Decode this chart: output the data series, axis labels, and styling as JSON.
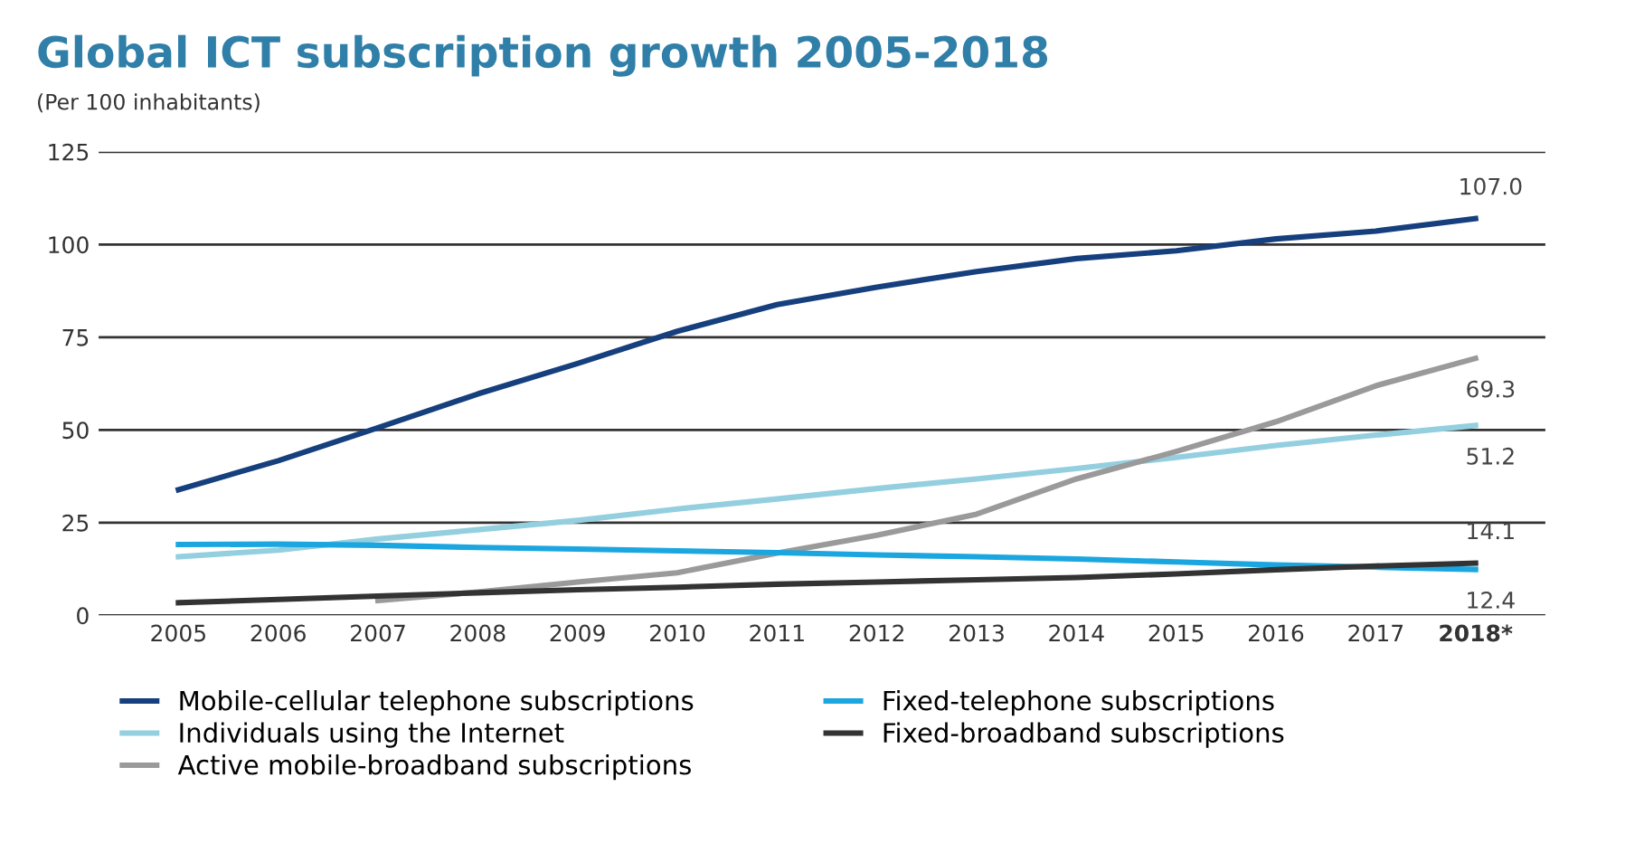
{
  "chart_data": {
    "type": "line",
    "title": "Global ICT subscription growth 2005-2018",
    "ylabel": "(Per 100 inhabitants)",
    "categories": [
      "2005",
      "2006",
      "2007",
      "2008",
      "2009",
      "2010",
      "2011",
      "2012",
      "2013",
      "2014",
      "2015",
      "2016",
      "2017",
      "2018*"
    ],
    "series": [
      {
        "name": "Mobile-cellular telephone subscriptions",
        "color": "#163f7d",
        "values": [
          33.9,
          41.7,
          50.6,
          59.7,
          67.9,
          76.6,
          83.8,
          88.5,
          92.7,
          96.2,
          98.3,
          101.5,
          103.6,
          107.0
        ],
        "value_labels": [
          null,
          null,
          null,
          null,
          null,
          null,
          null,
          null,
          null,
          null,
          null,
          null,
          null,
          "107.0"
        ]
      },
      {
        "name": "Individuals using the Internet",
        "color": "#94cfe0",
        "values": [
          15.8,
          17.6,
          20.6,
          23.1,
          25.6,
          28.7,
          31.4,
          34.2,
          36.8,
          39.6,
          42.6,
          45.8,
          48.6,
          51.2
        ],
        "value_labels": [
          null,
          null,
          null,
          null,
          null,
          null,
          null,
          null,
          null,
          null,
          null,
          null,
          null,
          "51.2"
        ]
      },
      {
        "name": "Active mobile-broadband subscriptions",
        "color": "#9a9a9a",
        "values": [
          null,
          null,
          4.0,
          6.3,
          9.0,
          11.5,
          16.8,
          21.6,
          27.3,
          36.8,
          44.2,
          52.2,
          61.9,
          69.3
        ],
        "value_labels": [
          null,
          null,
          null,
          null,
          null,
          null,
          null,
          null,
          null,
          null,
          null,
          null,
          null,
          "69.3"
        ]
      },
      {
        "name": "Fixed-telephone subscriptions",
        "color": "#1ba6e0",
        "values": [
          19.1,
          19.2,
          18.9,
          18.3,
          17.9,
          17.4,
          16.9,
          16.3,
          15.8,
          15.2,
          14.4,
          13.6,
          13.0,
          12.4
        ],
        "value_labels": [
          null,
          null,
          null,
          null,
          null,
          null,
          null,
          null,
          null,
          null,
          null,
          null,
          null,
          "12.4"
        ]
      },
      {
        "name": "Fixed-broadband subscriptions",
        "color": "#333333",
        "values": [
          3.4,
          4.3,
          5.2,
          6.1,
          6.9,
          7.6,
          8.4,
          9.0,
          9.6,
          10.2,
          11.2,
          12.3,
          13.3,
          14.1
        ],
        "value_labels": [
          null,
          null,
          null,
          null,
          null,
          null,
          null,
          null,
          null,
          null,
          null,
          null,
          null,
          "14.1"
        ]
      }
    ],
    "ylim": [
      0,
      125
    ],
    "yticks": [
      0,
      25,
      50,
      75,
      100,
      125
    ],
    "grid": "y",
    "legend": "bottom",
    "marker": "none",
    "line_style": "solid"
  }
}
